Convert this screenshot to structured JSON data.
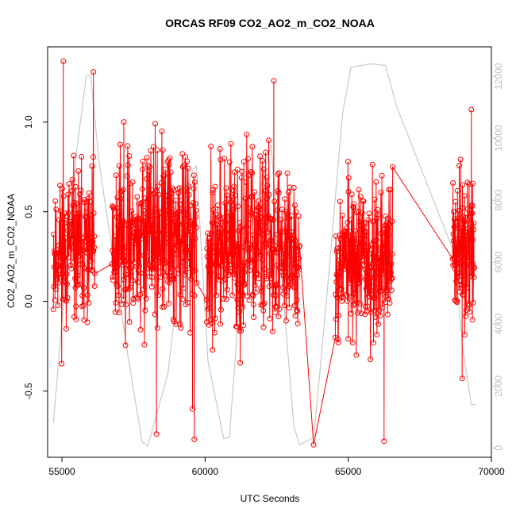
{
  "chart_data": {
    "type": "line",
    "title": "ORCAS RF09 CO2_AO2_m_CO2_NOAA",
    "xlabel": "UTC Seconds",
    "ylabel": "CO2_AO2_m_CO2_NOAA",
    "ylabel_right": "",
    "xlim": [
      54500,
      70000
    ],
    "ylim": [
      -0.87,
      1.42
    ],
    "ylim_right": [
      -300,
      12950
    ],
    "x_ticks": [
      55000,
      60000,
      65000,
      70000
    ],
    "y_ticks": [
      -0.5,
      0.0,
      0.5,
      1.0
    ],
    "y_ticks_right": [
      0,
      2000,
      4000,
      6000,
      8000,
      10000,
      12000
    ],
    "grid": false,
    "legend": "none",
    "colors": {
      "primary": "#ff0000",
      "secondary": "#c8c8c8",
      "right_axis": "#bdbdbd"
    },
    "series": [
      {
        "type": "line-markers",
        "segments": [
          {
            "x_start": 54700,
            "x_end": 56150,
            "y_base": 0.28,
            "y_spread": 0.62,
            "n": 150,
            "seed": 11
          },
          {
            "x_start": 56750,
            "x_end": 59700,
            "y_base": 0.36,
            "y_spread": 0.72,
            "n": 330,
            "seed": 23
          },
          {
            "x_start": 60050,
            "x_end": 63300,
            "y_base": 0.3,
            "y_spread": 0.72,
            "n": 360,
            "seed": 37
          },
          {
            "x_start": 64550,
            "x_end": 66550,
            "y_base": 0.24,
            "y_spread": 0.66,
            "n": 220,
            "seed": 53
          },
          {
            "x_start": 68650,
            "x_end": 69400,
            "y_base": 0.3,
            "y_spread": 0.58,
            "n": 110,
            "seed": 71
          }
        ],
        "points": [
          [
            55050,
            1.34
          ],
          [
            56100,
            1.28
          ],
          [
            59560,
            -0.6
          ],
          [
            59620,
            -0.77
          ],
          [
            63790,
            -0.8
          ],
          [
            66250,
            -0.78
          ],
          [
            69300,
            1.07
          ],
          [
            68980,
            -0.43
          ],
          [
            62400,
            1.23
          ],
          [
            58300,
            -0.74
          ]
        ]
      },
      {
        "type": "line",
        "axis": "right",
        "x": [
          54700,
          55500,
          55850,
          56000,
          56300,
          57300,
          57800,
          58000,
          58700,
          59500,
          59700,
          60100,
          60650,
          60850,
          61300,
          62300,
          63100,
          63300,
          63800,
          64300,
          64800,
          65100,
          65800,
          66300,
          66700,
          68700,
          69000,
          69300,
          69450
        ],
        "y": [
          800,
          9500,
          12000,
          12050,
          9200,
          3000,
          200,
          60,
          2400,
          8900,
          9100,
          2800,
          300,
          350,
          6000,
          9800,
          700,
          100,
          350,
          5400,
          10800,
          12300,
          12400,
          12350,
          11000,
          6300,
          3200,
          1400,
          1400
        ]
      }
    ]
  }
}
